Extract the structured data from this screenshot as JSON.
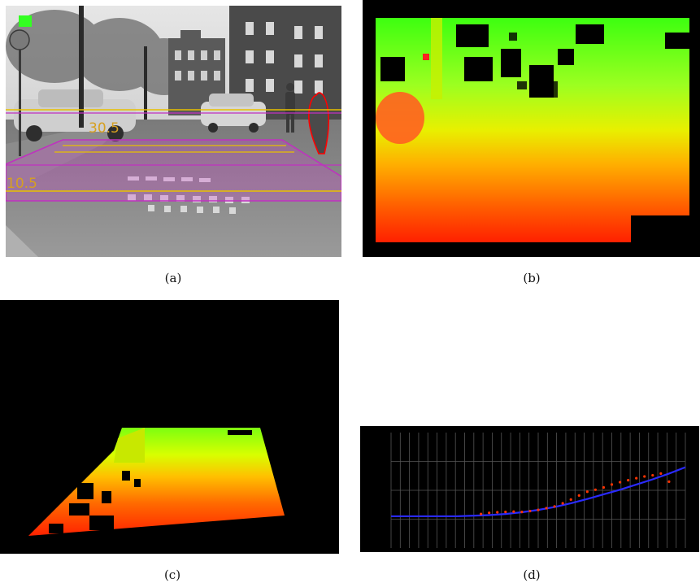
{
  "figure": {
    "panels": [
      {
        "id": "a",
        "caption": "(a)",
        "overlay_labels": [
          "30.5",
          "10.5"
        ]
      },
      {
        "id": "b",
        "caption": "(b)"
      },
      {
        "id": "c",
        "caption": "(c)"
      },
      {
        "id": "d",
        "caption": "(d)"
      }
    ]
  },
  "colors": {
    "near": "#ff1a00",
    "mid": "#ffcc00",
    "far": "#33ff00",
    "overlay_magenta": "#d040d0",
    "overlay_yellow": "#e8c000",
    "overlay_label": "#d6a020",
    "pedestrian_outline": "#ff0000",
    "status_square": "#33ff22",
    "fit_line": "#2a2aff",
    "measured_points": "#ff3300",
    "plot_grid": "#555555"
  },
  "chart_data": {
    "type": "scatter",
    "title": "",
    "xlabel": "",
    "ylabel": "",
    "x_range": [
      0,
      36
    ],
    "y_range": [
      0,
      4
    ],
    "grid": true,
    "series": [
      {
        "kind": "line",
        "x": [
          0,
          4,
          8,
          12,
          14,
          16,
          18,
          20,
          22,
          24,
          26,
          28,
          30,
          32,
          34,
          36
        ],
        "y": [
          1.1,
          1.1,
          1.1,
          1.14,
          1.18,
          1.24,
          1.32,
          1.42,
          1.55,
          1.7,
          1.86,
          2.02,
          2.2,
          2.38,
          2.58,
          2.8
        ]
      },
      {
        "kind": "points",
        "x": [
          11,
          12,
          13,
          14,
          15,
          16,
          17,
          18,
          19,
          20,
          21,
          22,
          23,
          24,
          25,
          26,
          27,
          28,
          29,
          30,
          31,
          32,
          33,
          34
        ],
        "y": [
          1.18,
          1.22,
          1.24,
          1.25,
          1.26,
          1.25,
          1.28,
          1.32,
          1.38,
          1.44,
          1.55,
          1.68,
          1.82,
          1.95,
          2.02,
          2.1,
          2.2,
          2.28,
          2.35,
          2.42,
          2.48,
          2.52,
          2.58,
          2.3
        ]
      }
    ]
  }
}
